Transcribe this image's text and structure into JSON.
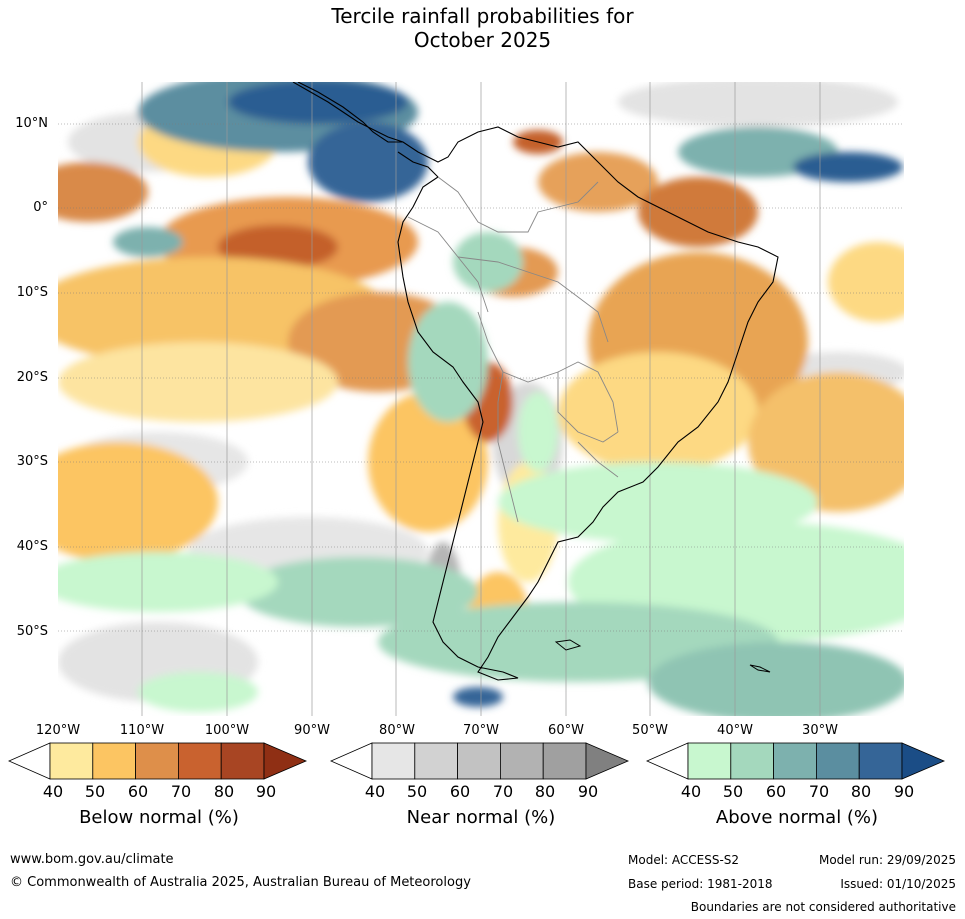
{
  "title_line1": "Tercile rainfall probabilities for",
  "title_line2": "October 2025",
  "lat_labels": [
    "10°N",
    "0°",
    "10°S",
    "20°S",
    "30°S",
    "40°S",
    "50°S"
  ],
  "lon_labels": [
    "120°W",
    "110°W",
    "100°W",
    "90°W",
    "80°W",
    "70°W",
    "60°W",
    "50°W",
    "40°W",
    "30°W"
  ],
  "colorbars": [
    {
      "name": "below",
      "title": "Below normal (%)",
      "ticks": [
        "40",
        "50",
        "60",
        "70",
        "80",
        "90"
      ],
      "colors": [
        "#ffffff",
        "#feea9e",
        "#fcc562",
        "#de8f4a",
        "#c9622f",
        "#a84523",
        "#8f2f14"
      ]
    },
    {
      "name": "near",
      "title": "Near normal (%)",
      "ticks": [
        "40",
        "50",
        "60",
        "70",
        "80",
        "90"
      ],
      "colors": [
        "#ffffff",
        "#e6e6e6",
        "#d2d2d2",
        "#c2c2c2",
        "#b2b2b2",
        "#a0a0a0",
        "#808080"
      ]
    },
    {
      "name": "above",
      "title": "Above normal (%)",
      "ticks": [
        "40",
        "50",
        "60",
        "70",
        "80",
        "90"
      ],
      "colors": [
        "#ffffff",
        "#c8f7cf",
        "#a4d8bd",
        "#7db1ae",
        "#5b8ea0",
        "#356597",
        "#1b4d86"
      ]
    }
  ],
  "footer": {
    "url": "www.bom.gov.au/climate",
    "copyright": "© Commonwealth of Australia 2025, Australian Bureau of Meteorology",
    "model": "Model: ACCESS-S2",
    "model_run": "Model run: 29/09/2025",
    "base_period": "Base period: 1981-2018",
    "issued": "Issued: 01/10/2025",
    "disclaimer": "Boundaries are not considered authoritative"
  }
}
